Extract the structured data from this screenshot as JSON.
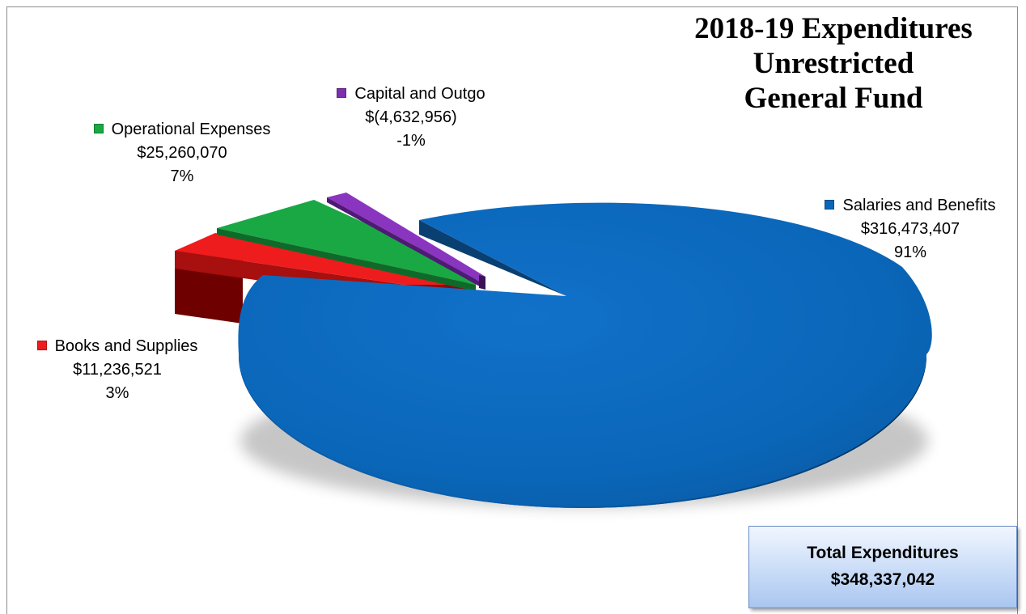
{
  "chart_data": {
    "type": "pie",
    "title": [
      "2018-19 Expenditures",
      "Unrestricted",
      "General Fund"
    ],
    "slices": [
      {
        "name": "Salaries and Benefits",
        "value_text": "$316,473,407",
        "pct_text": "91%",
        "value": 316473407,
        "pct": 91,
        "color": "#0a66b8"
      },
      {
        "name": "Books and Supplies",
        "value_text": "$11,236,521",
        "pct_text": "3%",
        "value": 11236521,
        "pct": 3,
        "color": "#ee1c1c"
      },
      {
        "name": "Operational Expenses",
        "value_text": "$25,260,070",
        "pct_text": "7%",
        "value": 25260070,
        "pct": 7,
        "color": "#1aa845"
      },
      {
        "name": "Capital and Outgo",
        "value_text": "$(4,632,956)",
        "pct_text": "-1%",
        "value": -4632956,
        "pct": -1,
        "color": "#7d2fad"
      }
    ],
    "legend": "none"
  },
  "total": {
    "label": "Total Expenditures",
    "value": "$348,337,042"
  }
}
